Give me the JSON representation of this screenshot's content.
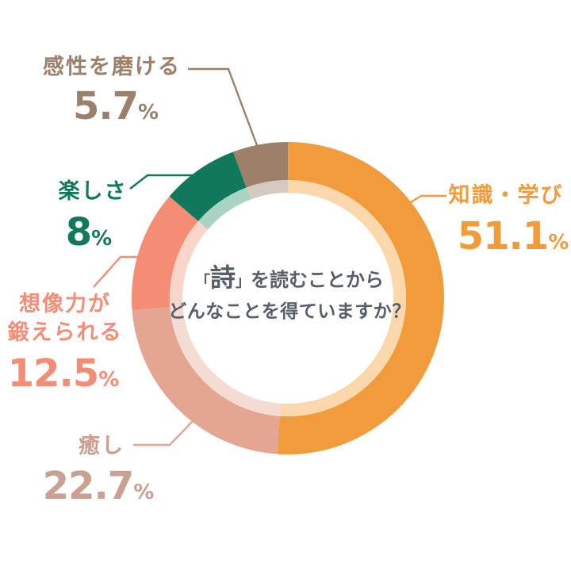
{
  "center_question": {
    "line1_prefix": "「",
    "line1_emphasis": "詩",
    "line1_suffix": "」を読むことから",
    "line2": "どんなことを得ていますか？",
    "text_color": "#575E6A"
  },
  "chart_data": {
    "type": "pie",
    "subtype": "donut",
    "title": "「詩」を読むことからどんなことを得ていますか？",
    "unit": "%",
    "start_angle_deg": 0,
    "direction": "clockwise",
    "legend_position": "around-chart",
    "segments": [
      {
        "label": "知識・学び",
        "value": 51.1,
        "display": "51.1",
        "color": "#F29B3D",
        "inner_color": "#FAD8AC"
      },
      {
        "label": "癒し",
        "value": 22.7,
        "display": "22.7",
        "color": "#E4A592",
        "inner_color": "#F5DCD3",
        "label_color": "#C9A092"
      },
      {
        "label": "想像力が鍛えられる",
        "label_lines": [
          "想像力が",
          "鍛えられる"
        ],
        "value": 12.5,
        "display": "12.5",
        "color": "#F58D76",
        "inner_color": "#FAD5CA"
      },
      {
        "label": "楽しさ",
        "value": 8,
        "display": "8",
        "color": "#11795B",
        "inner_color": "#A9D3C3"
      },
      {
        "label": "感性を磨ける",
        "value": 5.7,
        "display": "5.7",
        "color": "#9C8069",
        "inner_color": "#D4C9C1"
      }
    ]
  }
}
